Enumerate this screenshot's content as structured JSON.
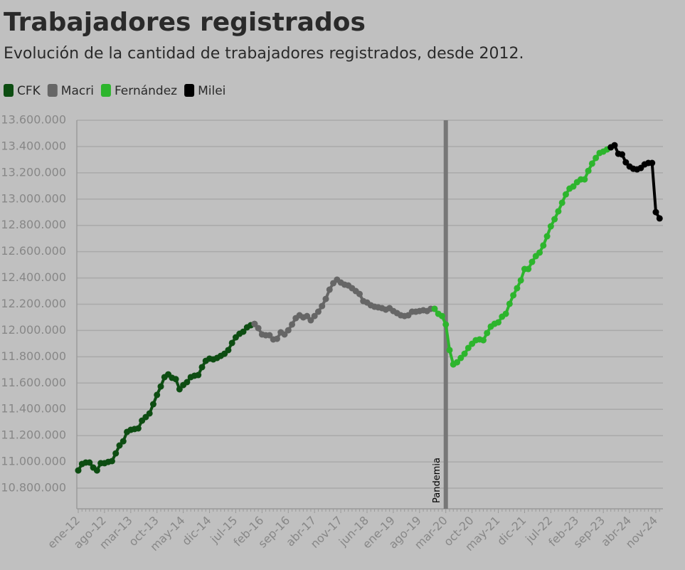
{
  "chart_data": {
    "type": "line",
    "title": "Trabajadores registrados",
    "subtitle": "Evolución de la cantidad de trabajadores registrados, desde 2012.",
    "categories": [
      "ene-12",
      null,
      null,
      null,
      null,
      null,
      null,
      "ago-12",
      null,
      null,
      null,
      null,
      null,
      null,
      "mar-13",
      null,
      null,
      null,
      null,
      null,
      null,
      "oct-13",
      null,
      null,
      null,
      null,
      null,
      null,
      "may-14",
      null,
      null,
      null,
      null,
      null,
      null,
      "dic-14",
      null,
      null,
      null,
      null,
      null,
      null,
      "jul-15",
      null,
      null,
      null,
      null,
      null,
      null,
      "feb-16",
      null,
      null,
      null,
      null,
      null,
      null,
      "sep-16",
      null,
      null,
      null,
      null,
      null,
      null,
      "abr-17",
      null,
      null,
      null,
      null,
      null,
      null,
      "nov-17",
      null,
      null,
      null,
      null,
      null,
      null,
      "jun-18",
      null,
      null,
      null,
      null,
      null,
      null,
      "ene-19",
      null,
      null,
      null,
      null,
      null,
      null,
      "ago-19",
      null,
      null,
      null,
      null,
      null,
      null,
      "mar-20",
      null,
      null,
      null,
      null,
      null,
      null,
      "oct-20",
      null,
      null,
      null,
      null,
      null,
      null,
      "may-21",
      null,
      null,
      null,
      null,
      null,
      null,
      "dic-21",
      null,
      null,
      null,
      null,
      null,
      null,
      "jul-22",
      null,
      null,
      null,
      null,
      null,
      null,
      "feb-23",
      null,
      null,
      null,
      null,
      null,
      null,
      "sep-23",
      null,
      null,
      null,
      null,
      null,
      null,
      "abr-24",
      null,
      null,
      null,
      null,
      null,
      null,
      "nov-24",
      null
    ],
    "series": [
      {
        "name": "CFK",
        "color": "#0d4d12",
        "values": [
          10935000,
          10984000,
          10995000,
          10995000,
          10957000,
          10935000,
          10990000,
          10990000,
          11000000,
          11006000,
          11065000,
          11125000,
          11157000,
          11228000,
          11244000,
          11250000,
          11255000,
          11314000,
          11341000,
          11369000,
          11439000,
          11510000,
          11574000,
          11645000,
          11666000,
          11640000,
          11630000,
          11553000,
          11585000,
          11607000,
          11645000,
          11656000,
          11661000,
          11721000,
          11769000,
          11786000,
          11780000,
          11791000,
          11807000,
          11823000,
          11851000,
          11905000,
          11948000,
          11975000,
          11991000,
          12024000,
          12040000,
          12050000,
          null,
          null,
          null,
          null,
          null,
          null,
          null,
          null,
          null,
          null,
          null,
          null,
          null,
          null,
          null,
          null,
          null,
          null,
          null,
          null,
          null,
          null,
          null,
          null,
          null,
          null,
          null,
          null,
          null,
          null,
          null,
          null,
          null,
          null,
          null,
          null,
          null,
          null,
          null,
          null,
          null,
          null,
          null,
          null,
          null,
          null,
          null,
          null,
          null,
          null,
          null,
          null,
          null,
          null,
          null,
          null,
          null,
          null,
          null,
          null,
          null,
          null,
          null,
          null,
          null,
          null,
          null,
          null,
          null,
          null,
          null,
          null,
          null,
          null,
          null,
          null,
          null,
          null,
          null,
          null,
          null,
          null,
          null,
          null,
          null,
          null,
          null,
          null,
          null,
          null,
          null,
          null,
          null,
          null,
          null,
          null,
          null,
          null,
          null,
          null,
          null,
          null,
          null,
          null,
          null,
          null,
          null,
          null
        ]
      },
      {
        "name": "Macri",
        "color": "#666666",
        "values": [
          null,
          null,
          null,
          null,
          null,
          null,
          null,
          null,
          null,
          null,
          null,
          null,
          null,
          null,
          null,
          null,
          null,
          null,
          null,
          null,
          null,
          null,
          null,
          null,
          null,
          null,
          null,
          null,
          null,
          null,
          null,
          null,
          null,
          null,
          null,
          null,
          null,
          null,
          null,
          null,
          null,
          null,
          null,
          null,
          null,
          null,
          null,
          12050000,
          12018000,
          11970000,
          11964000,
          11964000,
          11932000,
          11937000,
          11986000,
          11970000,
          12002000,
          12046000,
          12094000,
          12116000,
          12100000,
          12110000,
          12078000,
          12110000,
          12143000,
          12186000,
          12240000,
          12311000,
          12360000,
          12387000,
          12365000,
          12349000,
          12343000,
          12322000,
          12300000,
          12278000,
          12224000,
          12213000,
          12192000,
          12181000,
          12176000,
          12170000,
          12159000,
          12170000,
          12148000,
          12132000,
          12116000,
          12110000,
          12116000,
          12143000,
          12143000,
          12148000,
          12154000,
          12148000,
          12165000,
          12165000,
          null,
          null,
          null,
          null,
          null,
          null,
          null,
          null,
          null,
          null,
          null,
          null,
          null,
          null,
          null,
          null,
          null,
          null,
          null,
          null,
          null,
          null,
          null,
          null,
          null,
          null,
          null,
          null,
          null,
          null,
          null,
          null,
          null,
          null,
          null,
          null,
          null,
          null,
          null,
          null,
          null,
          null,
          null,
          null,
          null,
          null,
          null,
          null,
          null,
          null,
          null,
          null,
          null,
          null,
          null,
          null,
          null,
          null,
          null,
          null
        ]
      },
      {
        "name": "Fernández",
        "color": "#2db52d",
        "values": [
          null,
          null,
          null,
          null,
          null,
          null,
          null,
          null,
          null,
          null,
          null,
          null,
          null,
          null,
          null,
          null,
          null,
          null,
          null,
          null,
          null,
          null,
          null,
          null,
          null,
          null,
          null,
          null,
          null,
          null,
          null,
          null,
          null,
          null,
          null,
          null,
          null,
          null,
          null,
          null,
          null,
          null,
          null,
          null,
          null,
          null,
          null,
          null,
          null,
          null,
          null,
          null,
          null,
          null,
          null,
          null,
          null,
          null,
          null,
          null,
          null,
          null,
          null,
          null,
          null,
          null,
          null,
          null,
          null,
          null,
          null,
          null,
          null,
          null,
          null,
          null,
          null,
          null,
          null,
          null,
          null,
          null,
          null,
          null,
          null,
          null,
          null,
          null,
          null,
          null,
          null,
          null,
          null,
          null,
          null,
          12165000,
          12127000,
          12110000,
          12046000,
          11851000,
          11742000,
          11758000,
          11791000,
          11823000,
          11867000,
          11899000,
          11926000,
          11932000,
          11926000,
          11981000,
          12030000,
          12051000,
          12062000,
          12105000,
          12127000,
          12203000,
          12268000,
          12322000,
          12382000,
          12468000,
          12468000,
          12522000,
          12566000,
          12593000,
          12647000,
          12717000,
          12793000,
          12847000,
          12907000,
          12972000,
          13036000,
          13080000,
          13096000,
          13129000,
          13150000,
          13150000,
          13215000,
          13270000,
          13313000,
          13351000,
          13362000,
          13378000,
          13394000,
          null,
          null,
          null,
          null,
          null,
          null,
          null,
          null,
          null,
          null,
          null,
          null,
          null
        ]
      },
      {
        "name": "Milei",
        "color": "#000000",
        "values": [
          null,
          null,
          null,
          null,
          null,
          null,
          null,
          null,
          null,
          null,
          null,
          null,
          null,
          null,
          null,
          null,
          null,
          null,
          null,
          null,
          null,
          null,
          null,
          null,
          null,
          null,
          null,
          null,
          null,
          null,
          null,
          null,
          null,
          null,
          null,
          null,
          null,
          null,
          null,
          null,
          null,
          null,
          null,
          null,
          null,
          null,
          null,
          null,
          null,
          null,
          null,
          null,
          null,
          null,
          null,
          null,
          null,
          null,
          null,
          null,
          null,
          null,
          null,
          null,
          null,
          null,
          null,
          null,
          null,
          null,
          null,
          null,
          null,
          null,
          null,
          null,
          null,
          null,
          null,
          null,
          null,
          null,
          null,
          null,
          null,
          null,
          null,
          null,
          null,
          null,
          null,
          null,
          null,
          null,
          null,
          null,
          null,
          null,
          null,
          null,
          null,
          null,
          null,
          null,
          null,
          null,
          null,
          null,
          null,
          null,
          null,
          null,
          null,
          null,
          null,
          null,
          null,
          null,
          null,
          null,
          null,
          null,
          null,
          null,
          null,
          null,
          null,
          null,
          null,
          null,
          null,
          null,
          null,
          null,
          null,
          null,
          null,
          null,
          null,
          null,
          null,
          null,
          13394000,
          13410000,
          13345000,
          13340000,
          13280000,
          13248000,
          13231000,
          13226000,
          13237000,
          13264000,
          13275000,
          13275000,
          12901000,
          12853000
        ]
      }
    ],
    "ylim": [
      10643000,
      13600000
    ],
    "yticks": [
      {
        "value": 10800000,
        "label": "10.800.000"
      },
      {
        "value": 11000000,
        "label": "11.000.000"
      },
      {
        "value": 11200000,
        "label": "11.200.000"
      },
      {
        "value": 11400000,
        "label": "11.400.000"
      },
      {
        "value": 11600000,
        "label": "11.600.000"
      },
      {
        "value": 11800000,
        "label": "11.800.000"
      },
      {
        "value": 12000000,
        "label": "12.000.000"
      },
      {
        "value": 12200000,
        "label": "12.200.000"
      },
      {
        "value": 12400000,
        "label": "12.400.000"
      },
      {
        "value": 12600000,
        "label": "12.600.000"
      },
      {
        "value": 12800000,
        "label": "12.800.000"
      },
      {
        "value": 13000000,
        "label": "13.000.000"
      },
      {
        "value": 13200000,
        "label": "13.200.000"
      },
      {
        "value": 13400000,
        "label": "13.400.000"
      },
      {
        "value": 13600000,
        "label": "13.600.000"
      }
    ],
    "grid": true,
    "legend": "top-left",
    "annotations": [
      {
        "text": "Pandemia",
        "x": "mar-20"
      }
    ]
  }
}
